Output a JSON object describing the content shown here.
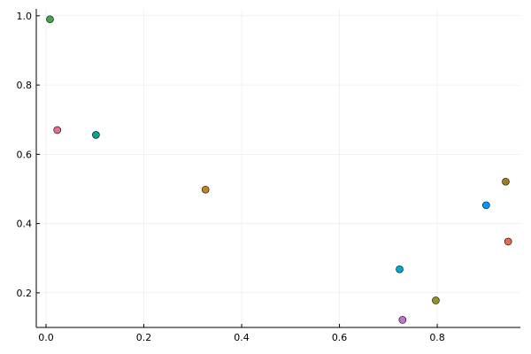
{
  "chart_data": {
    "type": "scatter",
    "title": "",
    "xlabel": "",
    "ylabel": "",
    "xlim": [
      -0.02,
      0.97
    ],
    "ylim": [
      0.1,
      1.02
    ],
    "grid": true,
    "legend": "none",
    "x_ticks": [
      {
        "value": 0.0,
        "label": "0.0"
      },
      {
        "value": 0.2,
        "label": "0.2"
      },
      {
        "value": 0.4,
        "label": "0.4"
      },
      {
        "value": 0.6,
        "label": "0.6"
      },
      {
        "value": 0.8,
        "label": "0.8"
      }
    ],
    "y_ticks": [
      {
        "value": 0.2,
        "label": "0.2"
      },
      {
        "value": 0.4,
        "label": "0.4"
      },
      {
        "value": 0.6,
        "label": "0.6"
      },
      {
        "value": 0.8,
        "label": "0.8"
      },
      {
        "value": 1.0,
        "label": "1.0"
      }
    ],
    "points": [
      {
        "x": 0.008,
        "y": 0.99,
        "color": "#3da44d"
      },
      {
        "x": 0.023,
        "y": 0.67,
        "color": "#e26f8b"
      },
      {
        "x": 0.102,
        "y": 0.656,
        "color": "#00a98d"
      },
      {
        "x": 0.326,
        "y": 0.498,
        "color": "#c68125"
      },
      {
        "x": 0.723,
        "y": 0.268,
        "color": "#00a8cb"
      },
      {
        "x": 0.729,
        "y": 0.122,
        "color": "#c271d2"
      },
      {
        "x": 0.797,
        "y": 0.178,
        "color": "#8e971e"
      },
      {
        "x": 0.9,
        "y": 0.453,
        "color": "#009af9"
      },
      {
        "x": 0.94,
        "y": 0.521,
        "color": "#9b7f1e"
      },
      {
        "x": 0.945,
        "y": 0.348,
        "color": "#e26f46"
      }
    ]
  }
}
